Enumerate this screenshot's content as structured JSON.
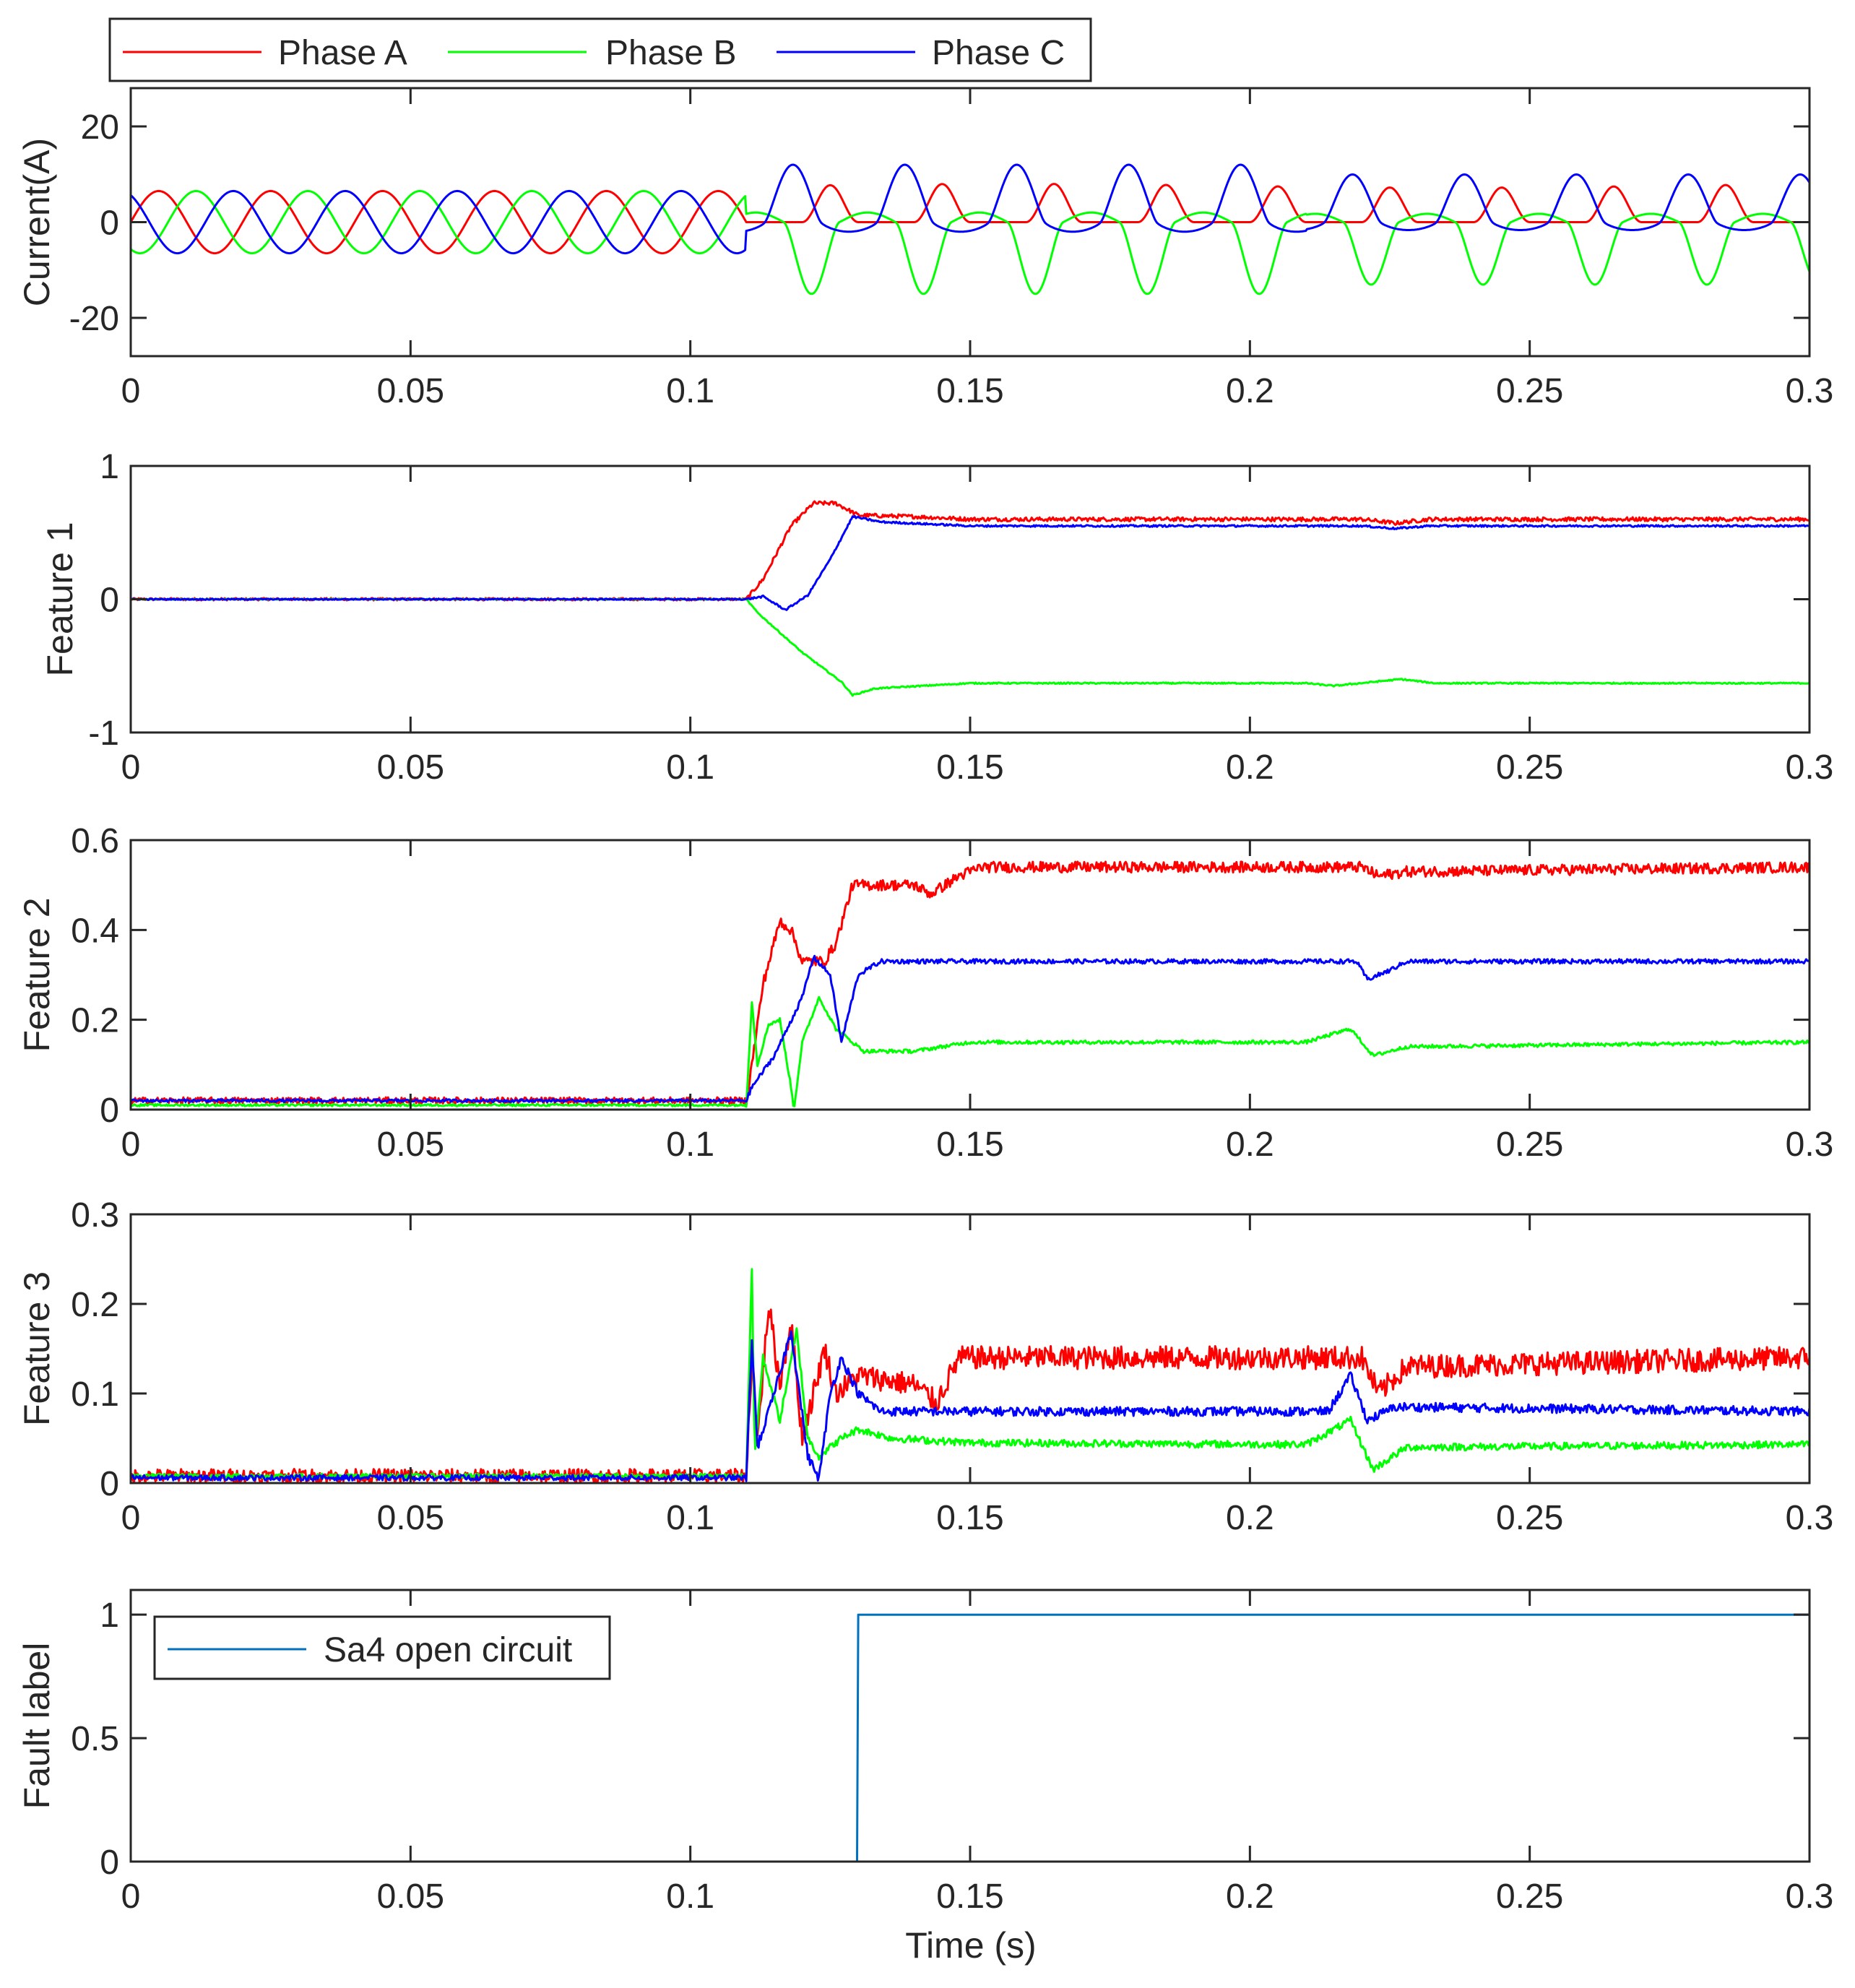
{
  "chart_data": [
    {
      "type": "line",
      "ylabel": "Current(A)",
      "xlim": [
        0,
        0.3
      ],
      "ylim": [
        -28,
        28
      ],
      "yticks": [
        -20,
        0,
        20
      ],
      "xticks": [
        0,
        0.05,
        0.1,
        0.15,
        0.2,
        0.25,
        0.3
      ],
      "xtick_labels": [
        "0",
        "0.05",
        "0.1",
        "0.15",
        "0.2",
        "0.25",
        "0.3"
      ],
      "legend": {
        "placement": "top-left, above axes",
        "entries": [
          "Phase A",
          "Phase B",
          "Phase C"
        ]
      },
      "fault_time": 0.11,
      "series": [
        {
          "name": "Phase A",
          "color": "#ff0000",
          "description_values": {
            "healthy_amplitude": 6.5,
            "faulty_peak": 8,
            "faulty_floor": 0
          }
        },
        {
          "name": "Phase B",
          "color": "#00ff00",
          "description_values": {
            "healthy_amplitude": 6.5,
            "faulty_peak": 2,
            "faulty_trough": -16
          }
        },
        {
          "name": "Phase C",
          "color": "#0000ff",
          "description_values": {
            "healthy_amplitude": 6.5,
            "faulty_peak": 12,
            "faulty_trough": -2
          }
        }
      ]
    },
    {
      "type": "line",
      "ylabel": "Feature 1",
      "xlim": [
        0,
        0.3
      ],
      "ylim": [
        -1,
        1
      ],
      "yticks": [
        -1,
        0,
        1
      ],
      "ytick_labels": [
        "-1",
        "0",
        "1"
      ],
      "xticks": [
        0,
        0.05,
        0.1,
        0.15,
        0.2,
        0.25,
        0.3
      ],
      "xtick_labels": [
        "0",
        "0.05",
        "0.1",
        "0.15",
        "0.2",
        "0.25",
        "0.3"
      ],
      "series": [
        {
          "name": "Phase A",
          "color": "#ff0000",
          "points": [
            [
              0,
              0
            ],
            [
              0.11,
              0
            ],
            [
              0.113,
              0.15
            ],
            [
              0.118,
              0.55
            ],
            [
              0.122,
              0.72
            ],
            [
              0.126,
              0.72
            ],
            [
              0.13,
              0.63
            ],
            [
              0.14,
              0.62
            ],
            [
              0.15,
              0.6
            ],
            [
              0.22,
              0.6
            ],
            [
              0.226,
              0.57
            ],
            [
              0.232,
              0.6
            ],
            [
              0.3,
              0.6
            ]
          ],
          "noise": 0.015
        },
        {
          "name": "Phase B",
          "color": "#00ff00",
          "points": [
            [
              0,
              0
            ],
            [
              0.11,
              0
            ],
            [
              0.112,
              -0.1
            ],
            [
              0.12,
              -0.4
            ],
            [
              0.127,
              -0.62
            ],
            [
              0.129,
              -0.72
            ],
            [
              0.133,
              -0.67
            ],
            [
              0.15,
              -0.63
            ],
            [
              0.21,
              -0.63
            ],
            [
              0.215,
              -0.65
            ],
            [
              0.227,
              -0.6
            ],
            [
              0.233,
              -0.63
            ],
            [
              0.3,
              -0.63
            ]
          ],
          "noise": 0.005
        },
        {
          "name": "Phase C",
          "color": "#0000ff",
          "points": [
            [
              0,
              0
            ],
            [
              0.11,
              0
            ],
            [
              0.113,
              0.02
            ],
            [
              0.117,
              -0.08
            ],
            [
              0.121,
              0.03
            ],
            [
              0.125,
              0.3
            ],
            [
              0.129,
              0.62
            ],
            [
              0.134,
              0.58
            ],
            [
              0.15,
              0.55
            ],
            [
              0.22,
              0.55
            ],
            [
              0.226,
              0.53
            ],
            [
              0.232,
              0.55
            ],
            [
              0.3,
              0.55
            ]
          ],
          "noise": 0.007
        }
      ]
    },
    {
      "type": "line",
      "ylabel": "Feature 2",
      "xlim": [
        0,
        0.3
      ],
      "ylim": [
        0,
        0.6
      ],
      "yticks": [
        0,
        0.2,
        0.4,
        0.6
      ],
      "ytick_labels": [
        "0",
        "0.2",
        "0.4",
        "0.6"
      ],
      "xticks": [
        0,
        0.05,
        0.1,
        0.15,
        0.2,
        0.25,
        0.3
      ],
      "xtick_labels": [
        "0",
        "0.05",
        "0.1",
        "0.15",
        "0.2",
        "0.25",
        "0.3"
      ],
      "series": [
        {
          "name": "Phase A",
          "color": "#ff0000",
          "points": [
            [
              0,
              0.02
            ],
            [
              0.11,
              0.02
            ],
            [
              0.111,
              0.1
            ],
            [
              0.113,
              0.28
            ],
            [
              0.116,
              0.42
            ],
            [
              0.118,
              0.4
            ],
            [
              0.12,
              0.33
            ],
            [
              0.124,
              0.33
            ],
            [
              0.126,
              0.37
            ],
            [
              0.129,
              0.5
            ],
            [
              0.14,
              0.5
            ],
            [
              0.143,
              0.48
            ],
            [
              0.148,
              0.52
            ],
            [
              0.152,
              0.54
            ],
            [
              0.22,
              0.54
            ],
            [
              0.223,
              0.52
            ],
            [
              0.228,
              0.53
            ],
            [
              0.3,
              0.54
            ]
          ],
          "noise": 0.012
        },
        {
          "name": "Phase B",
          "color": "#00ff00",
          "points": [
            [
              0,
              0.01
            ],
            [
              0.11,
              0.01
            ],
            [
              0.111,
              0.24
            ],
            [
              0.112,
              0.1
            ],
            [
              0.114,
              0.19
            ],
            [
              0.116,
              0.2
            ],
            [
              0.118,
              0.05
            ],
            [
              0.1185,
              0.0
            ],
            [
              0.12,
              0.15
            ],
            [
              0.123,
              0.25
            ],
            [
              0.126,
              0.18
            ],
            [
              0.128,
              0.16
            ],
            [
              0.131,
              0.13
            ],
            [
              0.14,
              0.13
            ],
            [
              0.15,
              0.15
            ],
            [
              0.21,
              0.15
            ],
            [
              0.218,
              0.18
            ],
            [
              0.222,
              0.12
            ],
            [
              0.228,
              0.14
            ],
            [
              0.3,
              0.15
            ]
          ],
          "noise": 0.004
        },
        {
          "name": "Phase C",
          "color": "#0000ff",
          "points": [
            [
              0,
              0.02
            ],
            [
              0.11,
              0.02
            ],
            [
              0.111,
              0.05
            ],
            [
              0.115,
              0.12
            ],
            [
              0.12,
              0.25
            ],
            [
              0.122,
              0.34
            ],
            [
              0.125,
              0.3
            ],
            [
              0.127,
              0.15
            ],
            [
              0.13,
              0.3
            ],
            [
              0.134,
              0.33
            ],
            [
              0.15,
              0.33
            ],
            [
              0.215,
              0.33
            ],
            [
              0.219,
              0.33
            ],
            [
              0.221,
              0.29
            ],
            [
              0.225,
              0.31
            ],
            [
              0.228,
              0.33
            ],
            [
              0.3,
              0.33
            ]
          ],
          "noise": 0.005
        }
      ]
    },
    {
      "type": "line",
      "ylabel": "Feature 3",
      "xlim": [
        0,
        0.3
      ],
      "ylim": [
        0,
        0.3
      ],
      "yticks": [
        0,
        0.1,
        0.2,
        0.3
      ],
      "ytick_labels": [
        "0",
        "0.1",
        "0.2",
        "0.3"
      ],
      "xticks": [
        0,
        0.05,
        0.1,
        0.15,
        0.2,
        0.25,
        0.3
      ],
      "xtick_labels": [
        "0",
        "0.05",
        "0.1",
        "0.15",
        "0.2",
        "0.25",
        "0.3"
      ],
      "series": [
        {
          "name": "Phase A",
          "color": "#ff0000",
          "points": [
            [
              0,
              0.008
            ],
            [
              0.11,
              0.008
            ],
            [
              0.111,
              0.14
            ],
            [
              0.112,
              0.05
            ],
            [
              0.114,
              0.2
            ],
            [
              0.116,
              0.11
            ],
            [
              0.118,
              0.18
            ],
            [
              0.12,
              0.05
            ],
            [
              0.124,
              0.15
            ],
            [
              0.126,
              0.1
            ],
            [
              0.13,
              0.12
            ],
            [
              0.14,
              0.11
            ],
            [
              0.144,
              0.09
            ],
            [
              0.148,
              0.14
            ],
            [
              0.22,
              0.14
            ],
            [
              0.223,
              0.1
            ],
            [
              0.228,
              0.13
            ],
            [
              0.3,
              0.14
            ]
          ],
          "noise": 0.013
        },
        {
          "name": "Phase B",
          "color": "#00ff00",
          "points": [
            [
              0,
              0.008
            ],
            [
              0.11,
              0.008
            ],
            [
              0.111,
              0.24
            ],
            [
              0.1115,
              0.03
            ],
            [
              0.113,
              0.14
            ],
            [
              0.116,
              0.07
            ],
            [
              0.119,
              0.17
            ],
            [
              0.121,
              0.05
            ],
            [
              0.123,
              0.03
            ],
            [
              0.127,
              0.05
            ],
            [
              0.13,
              0.06
            ],
            [
              0.136,
              0.05
            ],
            [
              0.15,
              0.045
            ],
            [
              0.21,
              0.043
            ],
            [
              0.218,
              0.07
            ],
            [
              0.222,
              0.015
            ],
            [
              0.228,
              0.04
            ],
            [
              0.3,
              0.043
            ]
          ],
          "noise": 0.004
        },
        {
          "name": "Phase C",
          "color": "#0000ff",
          "points": [
            [
              0,
              0.006
            ],
            [
              0.11,
              0.006
            ],
            [
              0.111,
              0.16
            ],
            [
              0.112,
              0.04
            ],
            [
              0.115,
              0.1
            ],
            [
              0.118,
              0.17
            ],
            [
              0.121,
              0.03
            ],
            [
              0.123,
              0.005
            ],
            [
              0.125,
              0.1
            ],
            [
              0.127,
              0.14
            ],
            [
              0.13,
              0.1
            ],
            [
              0.134,
              0.08
            ],
            [
              0.15,
              0.08
            ],
            [
              0.214,
              0.08
            ],
            [
              0.218,
              0.12
            ],
            [
              0.221,
              0.07
            ],
            [
              0.226,
              0.085
            ],
            [
              0.3,
              0.08
            ]
          ],
          "noise": 0.005
        }
      ]
    },
    {
      "type": "line",
      "ylabel": "Fault label",
      "xlabel": "Time (s)",
      "xlim": [
        0,
        0.3
      ],
      "ylim": [
        0,
        1.1
      ],
      "yticks": [
        0,
        0.5,
        1
      ],
      "ytick_labels": [
        "0",
        "0.5",
        "1"
      ],
      "xticks": [
        0,
        0.05,
        0.1,
        0.15,
        0.2,
        0.25,
        0.3
      ],
      "xtick_labels": [
        "0",
        "0.05",
        "0.1",
        "0.15",
        "0.2",
        "0.25",
        "0.3"
      ],
      "legend": {
        "placement": "top-left inside axes",
        "entries": [
          "Sa4 open circuit"
        ]
      },
      "series": [
        {
          "name": "Sa4 open circuit",
          "color": "#0072bd",
          "points": [
            [
              0,
              0
            ],
            [
              0.13,
              0
            ],
            [
              0.13,
              1
            ],
            [
              0.3,
              1
            ]
          ],
          "noise": 0
        }
      ]
    }
  ]
}
